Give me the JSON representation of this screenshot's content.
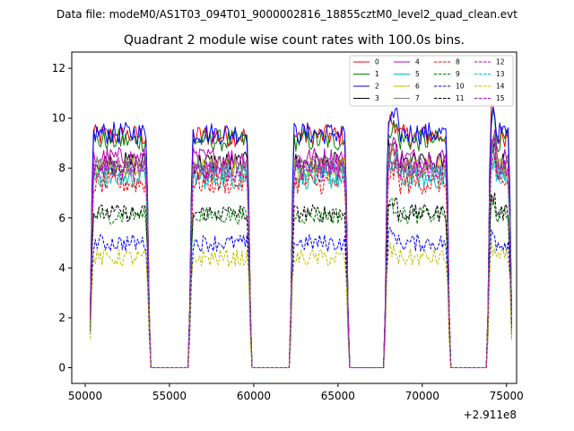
{
  "chart_data": {
    "type": "line",
    "suptitle": "Data file: modeM0/AS1T03_094T01_9000002816_18855cztM0_level2_quad_clean.evt",
    "title": "Quadrant 2 module wise count rates with 100.0s bins.",
    "xlabel": "",
    "ylabel": "",
    "offset_text": "+2.911e8",
    "xlim": [
      49200,
      75600
    ],
    "ylim": [
      -0.63,
      12.65
    ],
    "x_ticks": [
      50000,
      55000,
      60000,
      65000,
      70000,
      75000
    ],
    "x_tick_labels": [
      "50000",
      "55000",
      "60000",
      "65000",
      "70000",
      "75000"
    ],
    "y_ticks": [
      0,
      2,
      4,
      6,
      8,
      10,
      12
    ],
    "y_tick_labels": [
      "0",
      "2",
      "4",
      "6",
      "8",
      "10",
      "12"
    ],
    "bin_seconds": 100,
    "x_start": 50300,
    "x_end": 75300,
    "on_intervals": [
      [
        50300,
        53800
      ],
      [
        56200,
        59800
      ],
      [
        62200,
        65600
      ],
      [
        67800,
        71600
      ],
      [
        73900,
        75300
      ]
    ],
    "legend_position": "top-right",
    "series": [
      {
        "name": "0",
        "color": "#ff0000",
        "dash": "solid",
        "level": 9.3
      },
      {
        "name": "1",
        "color": "#008000",
        "dash": "solid",
        "level": 9.1
      },
      {
        "name": "2",
        "color": "#0000ff",
        "dash": "solid",
        "level": 9.4
      },
      {
        "name": "3",
        "color": "#000000",
        "dash": "solid",
        "level": 8.2
      },
      {
        "name": "4",
        "color": "#bf00bf",
        "dash": "solid",
        "level": 8.4
      },
      {
        "name": "5",
        "color": "#00bfbf",
        "dash": "solid",
        "level": 7.6
      },
      {
        "name": "6",
        "color": "#bfbf00",
        "dash": "solid",
        "level": 8.0
      },
      {
        "name": "7",
        "color": "#808080",
        "dash": "solid",
        "level": 8.1
      },
      {
        "name": "8",
        "color": "#ff0000",
        "dash": "dashed",
        "level": 7.4
      },
      {
        "name": "9",
        "color": "#008000",
        "dash": "dashed",
        "level": 6.1
      },
      {
        "name": "10",
        "color": "#0000ff",
        "dash": "dashed",
        "level": 5.0
      },
      {
        "name": "11",
        "color": "#000000",
        "dash": "dashed",
        "level": 6.2
      },
      {
        "name": "12",
        "color": "#bf00bf",
        "dash": "dashed",
        "level": 8.0
      },
      {
        "name": "13",
        "color": "#00bfbf",
        "dash": "dashed",
        "level": 7.8
      },
      {
        "name": "14",
        "color": "#bfbf00",
        "dash": "dashed",
        "level": 4.4
      },
      {
        "name": "15",
        "color": "#bf00bf",
        "dash": "dashed",
        "level": 7.9
      }
    ]
  }
}
